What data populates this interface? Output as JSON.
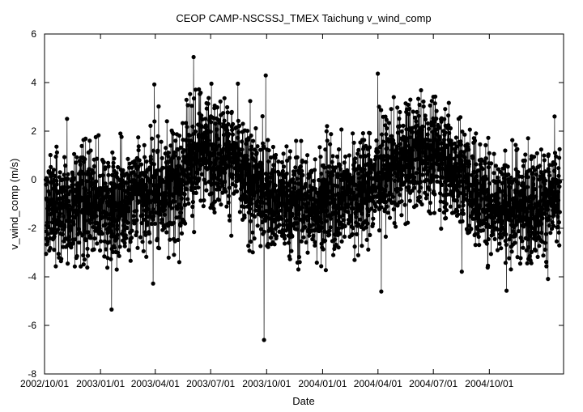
{
  "chart_data": {
    "type": "line",
    "title": "CEOP CAMP-NSCSSJ_TMEX Taichung  v_wind_comp",
    "xlabel": "Date",
    "ylabel": "v_wind_comp (m/s)",
    "xlim": [
      "2002-10-01",
      "2005-01-31"
    ],
    "ylim": [
      -8,
      6
    ],
    "x_tick_labels": [
      "2002/10/01",
      "2003/01/01",
      "2003/04/01",
      "2003/07/01",
      "2003/10/01",
      "2004/01/01",
      "2004/04/01",
      "2004/07/01",
      "2004/10/01"
    ],
    "y_tick_labels": [
      "-8",
      "-6",
      "-4",
      "-2",
      "0",
      "2",
      "4",
      "6"
    ],
    "y_ticks": [
      -8,
      -6,
      -4,
      -2,
      0,
      2,
      4,
      6
    ],
    "grid": false,
    "marker": "filled-circle",
    "series_color": "#000000",
    "series": [
      {
        "x": [
          "2002-10-01",
          "2002-10-11",
          "2002-10-21",
          "2002-11-01",
          "2002-11-11",
          "2002-11-21",
          "2002-12-01",
          "2002-12-11",
          "2002-12-21",
          "2003-01-01",
          "2003-01-11",
          "2003-01-21",
          "2003-02-01",
          "2003-02-11",
          "2003-02-21",
          "2003-03-01",
          "2003-03-11",
          "2003-03-21",
          "2003-04-01",
          "2003-04-11",
          "2003-04-21",
          "2003-05-01",
          "2003-05-11",
          "2003-05-21",
          "2003-06-01",
          "2003-06-11",
          "2003-06-21",
          "2003-07-01",
          "2003-07-11",
          "2003-07-21",
          "2003-08-01",
          "2003-08-11",
          "2003-08-21",
          "2003-09-01",
          "2003-09-11",
          "2003-09-21",
          "2003-10-01",
          "2003-10-11",
          "2003-10-21",
          "2003-11-01",
          "2003-11-11",
          "2003-11-21",
          "2003-12-01",
          "2003-12-11",
          "2003-12-21",
          "2004-01-01",
          "2004-01-11",
          "2004-01-21",
          "2004-02-01",
          "2004-02-11",
          "2004-02-21",
          "2004-03-01",
          "2004-03-11",
          "2004-03-21",
          "2004-04-01",
          "2004-04-11",
          "2004-04-21",
          "2004-05-01",
          "2004-05-11",
          "2004-05-21",
          "2004-06-01",
          "2004-06-11",
          "2004-06-21",
          "2004-07-01",
          "2004-07-11",
          "2004-07-21",
          "2004-08-01",
          "2004-08-11",
          "2004-08-21",
          "2004-09-01",
          "2004-09-11",
          "2004-09-21",
          "2004-10-01",
          "2004-10-11",
          "2004-10-21",
          "2004-11-01",
          "2004-11-11",
          "2004-11-21",
          "2004-12-01",
          "2004-12-11",
          "2004-12-21",
          "2005-01-01"
        ],
        "y_mean": [
          -0.9,
          -1.1,
          -1.2,
          -1.0,
          -1.3,
          -1.1,
          -1.0,
          -1.2,
          -1.1,
          -1.0,
          -1.2,
          -1.1,
          -0.9,
          -1.0,
          -0.8,
          -0.7,
          -0.8,
          -0.6,
          -0.5,
          -0.6,
          -0.4,
          -0.3,
          -0.2,
          0.2,
          0.8,
          1.2,
          1.4,
          1.3,
          1.1,
          1.2,
          1.0,
          0.6,
          0.2,
          -0.1,
          -0.3,
          -0.5,
          -0.6,
          -0.8,
          -0.9,
          -1.0,
          -1.0,
          -0.9,
          -1.0,
          -1.1,
          -0.9,
          -0.9,
          -0.8,
          -0.9,
          -0.7,
          -0.6,
          -0.5,
          -0.4,
          -0.3,
          -0.2,
          0.0,
          0.2,
          0.4,
          0.5,
          0.6,
          0.8,
          1.0,
          1.2,
          1.3,
          1.2,
          1.0,
          0.8,
          0.5,
          0.3,
          0.0,
          -0.3,
          -0.5,
          -0.7,
          -0.8,
          -0.9,
          -1.0,
          -1.0,
          -1.1,
          -1.0,
          -1.0,
          -0.9,
          -1.0,
          -0.9
        ],
        "y_spread": 1.6
      }
    ]
  }
}
